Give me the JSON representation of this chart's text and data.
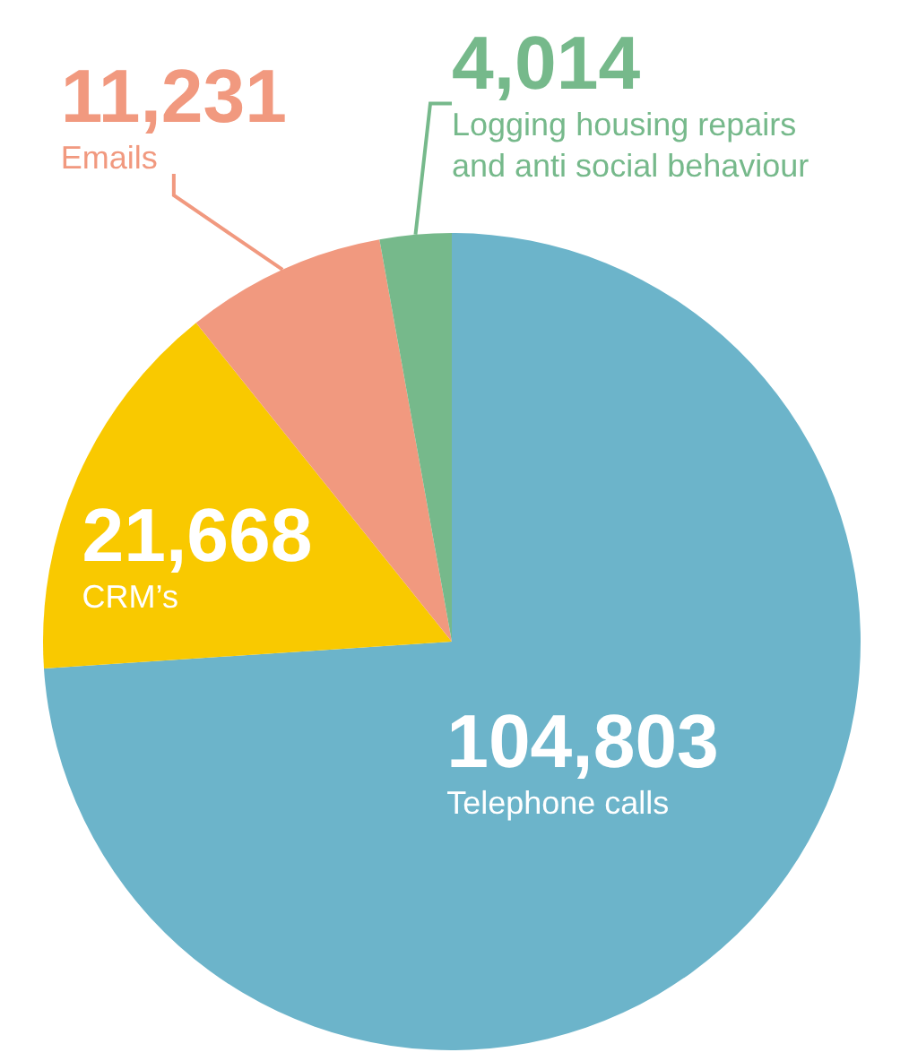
{
  "chart_data": {
    "type": "pie",
    "categories": [
      "Telephone calls",
      "CRM’s",
      "Emails",
      "Logging housing repairs\nand anti social behaviour"
    ],
    "values": [
      104803,
      21668,
      11231,
      4014
    ],
    "value_labels": [
      "104,803",
      "21,668",
      "11,231",
      "4,014"
    ],
    "colors": [
      "#6cb4ca",
      "#f9c900",
      "#f1997f",
      "#76b98b"
    ],
    "legend": false
  }
}
